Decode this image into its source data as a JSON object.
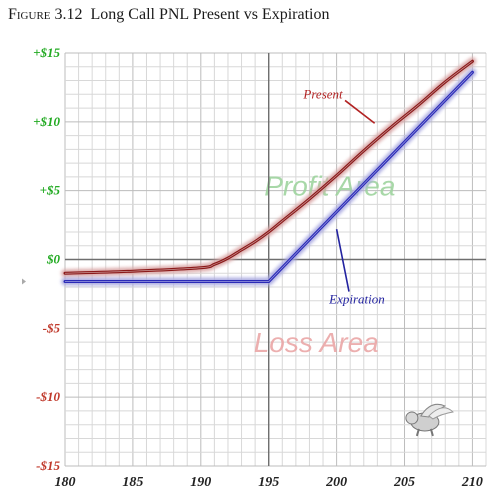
{
  "chart_data": {
    "type": "line",
    "title_lead": "Figure 3.12",
    "title": "Long Call PNL  Present vs Expiration",
    "xlabel": "",
    "ylabel": "",
    "xlim": [
      180,
      211
    ],
    "ylim": [
      -15,
      15
    ],
    "x_ticks": [
      {
        "value": 180,
        "label": "180"
      },
      {
        "value": 185,
        "label": "185"
      },
      {
        "value": 190,
        "label": "190"
      },
      {
        "value": 195,
        "label": "195"
      },
      {
        "value": 200,
        "label": "200"
      },
      {
        "value": 205,
        "label": "205"
      },
      {
        "value": 210,
        "label": "210"
      }
    ],
    "y_ticks": [
      {
        "value": 15,
        "label": "+$15",
        "color": "#22aa22"
      },
      {
        "value": 10,
        "label": "+$10",
        "color": "#22aa22"
      },
      {
        "value": 5,
        "label": "+$5",
        "color": "#22aa22"
      },
      {
        "value": 0,
        "label": "$0",
        "color": "#22aa22"
      },
      {
        "value": -5,
        "label": "-$5",
        "color": "#c0392b"
      },
      {
        "value": -10,
        "label": "-$10",
        "color": "#c0392b"
      },
      {
        "value": -15,
        "label": "-$15",
        "color": "#c0392b"
      }
    ],
    "grid": true,
    "grid_minor_step": 1,
    "center_x": 195,
    "series": [
      {
        "name": "Present",
        "color": "#8b1a1a",
        "glow": "#d9a5a5",
        "x": [
          180,
          185,
          190,
          191,
          192,
          193,
          194,
          195,
          196,
          198,
          200,
          202,
          204,
          206,
          208,
          210
        ],
        "y": [
          -1.0,
          -0.85,
          -0.6,
          -0.35,
          0.1,
          0.7,
          1.3,
          2.0,
          2.8,
          4.4,
          6.1,
          7.9,
          9.6,
          11.2,
          12.9,
          14.4
        ]
      },
      {
        "name": "Expiration",
        "color": "#2b2bb8",
        "glow": "#a8a8e0",
        "x": [
          180,
          195,
          210
        ],
        "y": [
          -1.6,
          -1.6,
          13.6
        ]
      }
    ],
    "annotations": [
      {
        "text": "Present",
        "x": 199.0,
        "y": 11.7,
        "arrow_to": [
          202.8,
          9.9
        ],
        "color": "#b22222"
      },
      {
        "text": "Expiration",
        "x": 201.5,
        "y": -3.2,
        "arrow_to": [
          200.0,
          2.2
        ],
        "color": "#2323a0"
      }
    ],
    "areas": [
      {
        "text": "Profit Area",
        "x": 199.5,
        "y": 5.2,
        "color": "#9fd49f"
      },
      {
        "text": "Loss Area",
        "x": 198.5,
        "y": -6.2,
        "color": "#eba7a7"
      }
    ],
    "decoration": {
      "name": "flying-pig-logo",
      "x": 206.5,
      "y": -11.8
    }
  }
}
